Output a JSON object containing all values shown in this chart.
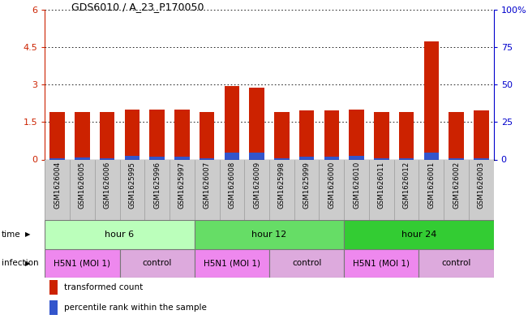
{
  "title": "GDS6010 / A_23_P170050",
  "samples": [
    "GSM1626004",
    "GSM1626005",
    "GSM1626006",
    "GSM1625995",
    "GSM1625996",
    "GSM1625997",
    "GSM1626007",
    "GSM1626008",
    "GSM1626009",
    "GSM1625998",
    "GSM1625999",
    "GSM1626000",
    "GSM1626010",
    "GSM1626011",
    "GSM1626012",
    "GSM1626001",
    "GSM1626002",
    "GSM1626003"
  ],
  "red_values": [
    1.9,
    1.9,
    1.9,
    2.0,
    2.0,
    2.0,
    1.9,
    2.93,
    2.87,
    1.9,
    1.95,
    1.95,
    2.0,
    1.9,
    1.9,
    4.72,
    1.9,
    1.95
  ],
  "blue_values": [
    0.05,
    0.07,
    0.05,
    0.13,
    0.12,
    0.1,
    0.05,
    0.28,
    0.27,
    0.05,
    0.12,
    0.1,
    0.13,
    0.05,
    0.05,
    0.28,
    0.05,
    0.06
  ],
  "ylim_left": [
    0,
    6
  ],
  "ylim_right": [
    0,
    100
  ],
  "yticks_left": [
    0,
    1.5,
    3,
    4.5,
    6
  ],
  "yticks_left_labels": [
    "0",
    "1.5",
    "3",
    "4.5",
    "6"
  ],
  "yticks_right": [
    0,
    25,
    50,
    75,
    100
  ],
  "yticks_right_labels": [
    "0",
    "25",
    "50",
    "75",
    "100%"
  ],
  "time_groups": [
    {
      "label": "hour 6",
      "start": 0,
      "end": 5,
      "color": "#bbffbb"
    },
    {
      "label": "hour 12",
      "start": 6,
      "end": 11,
      "color": "#66dd66"
    },
    {
      "label": "hour 24",
      "start": 12,
      "end": 17,
      "color": "#33cc33"
    }
  ],
  "infection_groups": [
    {
      "label": "H5N1 (MOI 1)",
      "start": 0,
      "end": 2,
      "color": "#ee88ee"
    },
    {
      "label": "control",
      "start": 3,
      "end": 5,
      "color": "#ddaadd"
    },
    {
      "label": "H5N1 (MOI 1)",
      "start": 6,
      "end": 8,
      "color": "#ee88ee"
    },
    {
      "label": "control",
      "start": 9,
      "end": 11,
      "color": "#ddaadd"
    },
    {
      "label": "H5N1 (MOI 1)",
      "start": 12,
      "end": 14,
      "color": "#ee88ee"
    },
    {
      "label": "control",
      "start": 15,
      "end": 17,
      "color": "#ddaadd"
    }
  ],
  "bar_color_red": "#cc2200",
  "bar_color_blue": "#3355cc",
  "background_color": "#ffffff",
  "left_axis_color": "#cc2200",
  "right_axis_color": "#0000cc",
  "dotted_grid_color": "#000000",
  "time_label": "time",
  "infection_label": "infection",
  "legend_red": "transformed count",
  "legend_blue": "percentile rank within the sample",
  "sample_bg_color": "#cccccc",
  "sample_border_color": "#999999"
}
